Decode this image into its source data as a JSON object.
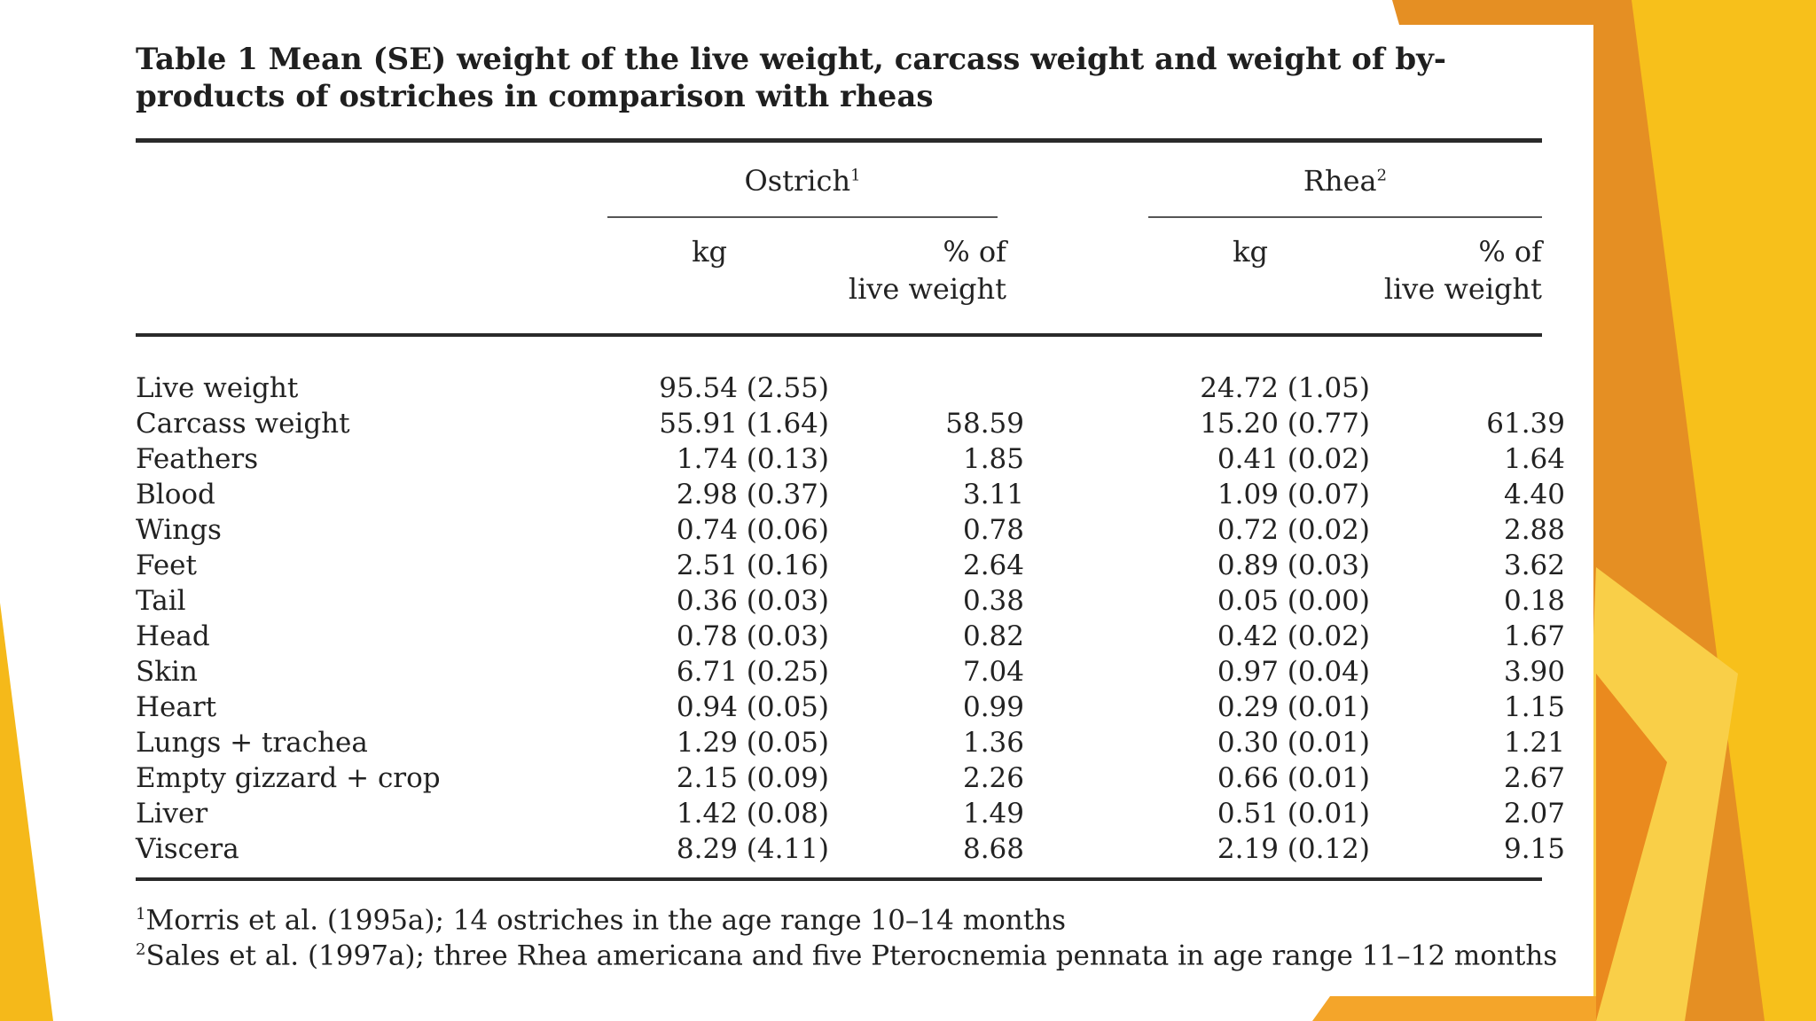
{
  "table": {
    "caption": "Table 1 Mean (SE) weight of the live weight, carcass weight and weight of by-products of ostriches in comparison with rheas",
    "groups": [
      {
        "name": "Ostrich",
        "marker": "1"
      },
      {
        "name": "Rhea",
        "marker": "2"
      }
    ],
    "subheaders": {
      "kg": "kg",
      "pct_line1": "% of",
      "pct_line2": "live weight"
    },
    "rows": [
      {
        "label": "Live weight",
        "ostrich_kg": "95.54 (2.55)",
        "ostrich_pct": "",
        "rhea_kg": "24.72 (1.05)",
        "rhea_pct": ""
      },
      {
        "label": "Carcass weight",
        "ostrich_kg": "55.91 (1.64)",
        "ostrich_pct": "58.59",
        "rhea_kg": "15.20 (0.77)",
        "rhea_pct": "61.39"
      },
      {
        "label": "Feathers",
        "ostrich_kg": "1.74 (0.13)",
        "ostrich_pct": "1.85",
        "rhea_kg": "0.41 (0.02)",
        "rhea_pct": "1.64"
      },
      {
        "label": "Blood",
        "ostrich_kg": "2.98 (0.37)",
        "ostrich_pct": "3.11",
        "rhea_kg": "1.09 (0.07)",
        "rhea_pct": "4.40"
      },
      {
        "label": "Wings",
        "ostrich_kg": "0.74 (0.06)",
        "ostrich_pct": "0.78",
        "rhea_kg": "0.72 (0.02)",
        "rhea_pct": "2.88"
      },
      {
        "label": "Feet",
        "ostrich_kg": "2.51 (0.16)",
        "ostrich_pct": "2.64",
        "rhea_kg": "0.89 (0.03)",
        "rhea_pct": "3.62"
      },
      {
        "label": "Tail",
        "ostrich_kg": "0.36 (0.03)",
        "ostrich_pct": "0.38",
        "rhea_kg": "0.05 (0.00)",
        "rhea_pct": "0.18"
      },
      {
        "label": "Head",
        "ostrich_kg": "0.78 (0.03)",
        "ostrich_pct": "0.82",
        "rhea_kg": "0.42 (0.02)",
        "rhea_pct": "1.67"
      },
      {
        "label": "Skin",
        "ostrich_kg": "6.71 (0.25)",
        "ostrich_pct": "7.04",
        "rhea_kg": "0.97 (0.04)",
        "rhea_pct": "3.90"
      },
      {
        "label": "Heart",
        "ostrich_kg": "0.94 (0.05)",
        "ostrich_pct": "0.99",
        "rhea_kg": "0.29 (0.01)",
        "rhea_pct": "1.15"
      },
      {
        "label": "Lungs + trachea",
        "ostrich_kg": "1.29 (0.05)",
        "ostrich_pct": "1.36",
        "rhea_kg": "0.30 (0.01)",
        "rhea_pct": "1.21"
      },
      {
        "label": "Empty gizzard + crop",
        "ostrich_kg": "2.15 (0.09)",
        "ostrich_pct": "2.26",
        "rhea_kg": "0.66 (0.01)",
        "rhea_pct": "2.67"
      },
      {
        "label": "Liver",
        "ostrich_kg": "1.42 (0.08)",
        "ostrich_pct": "1.49",
        "rhea_kg": "0.51 (0.01)",
        "rhea_pct": "2.07"
      },
      {
        "label": "Viscera",
        "ostrich_kg": "8.29 (4.11)",
        "ostrich_pct": "8.68",
        "rhea_kg": "2.19 (0.12)",
        "rhea_pct": "9.15"
      }
    ],
    "footnotes": [
      {
        "marker": "1",
        "text": "Morris et al. (1995a); 14 ostriches in the age range 10–14 months"
      },
      {
        "marker": "2",
        "text": "Sales et al. (1997a); three Rhea americana and five Pterocnemia pennata in age range 11–12 months"
      }
    ]
  },
  "colors": {
    "accent_orange": "#e8891d",
    "accent_yellow": "#f7c21c",
    "accent_light": "#f9d65a"
  }
}
